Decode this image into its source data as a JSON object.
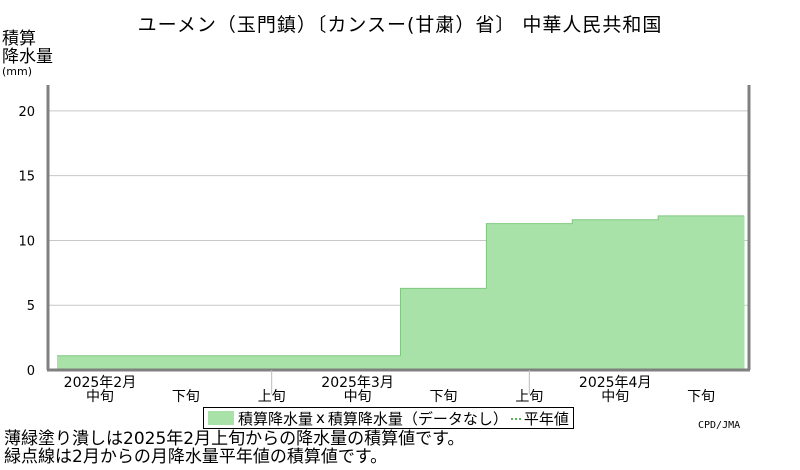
{
  "title": "ユーメン（玉門鎮）〔カンスー(甘粛）省〕 中華人民共和国",
  "ylabel": {
    "line1": "積算",
    "line2": "降水量",
    "unit": "(mm)"
  },
  "legend": {
    "filled": "積算降水量",
    "marker": "x",
    "missing": "積算降水量（データなし）",
    "dotted": "平年値"
  },
  "credit": "CPD/JMA",
  "notes": [
    "薄緑塗り潰しは2025年2月上旬からの降水量の積算値です。",
    "緑点線は2月からの月降水量平年値の積算値です。"
  ],
  "colors": {
    "fill": "#a8e2a8",
    "grid": "#c8c8c8",
    "axis": "#808080"
  },
  "chart_data": {
    "type": "area",
    "ylim": [
      0,
      22
    ],
    "yticks": [
      0,
      5,
      10,
      15,
      20
    ],
    "grid": true,
    "periods": [
      "2025年2月中旬",
      "2025年2月下旬",
      "2025年3月上旬",
      "2025年3月中旬",
      "2025年3月下旬",
      "2025年4月上旬",
      "2025年4月中旬",
      "2025年4月下旬"
    ],
    "period_labels": [
      "中旬",
      "下旬",
      "上旬",
      "中旬",
      "下旬",
      "上旬",
      "中旬",
      "下旬"
    ],
    "month_labels": [
      {
        "label": "2025年2月",
        "index": 0
      },
      {
        "label": "2025年3月",
        "index": 3
      },
      {
        "label": "2025年4月",
        "index": 6
      }
    ],
    "month_boundaries": [
      2,
      5
    ],
    "series": [
      {
        "values": [
          1.1,
          1.1,
          1.1,
          1.1,
          6.3,
          11.3,
          11.6,
          11.9
        ]
      }
    ]
  }
}
